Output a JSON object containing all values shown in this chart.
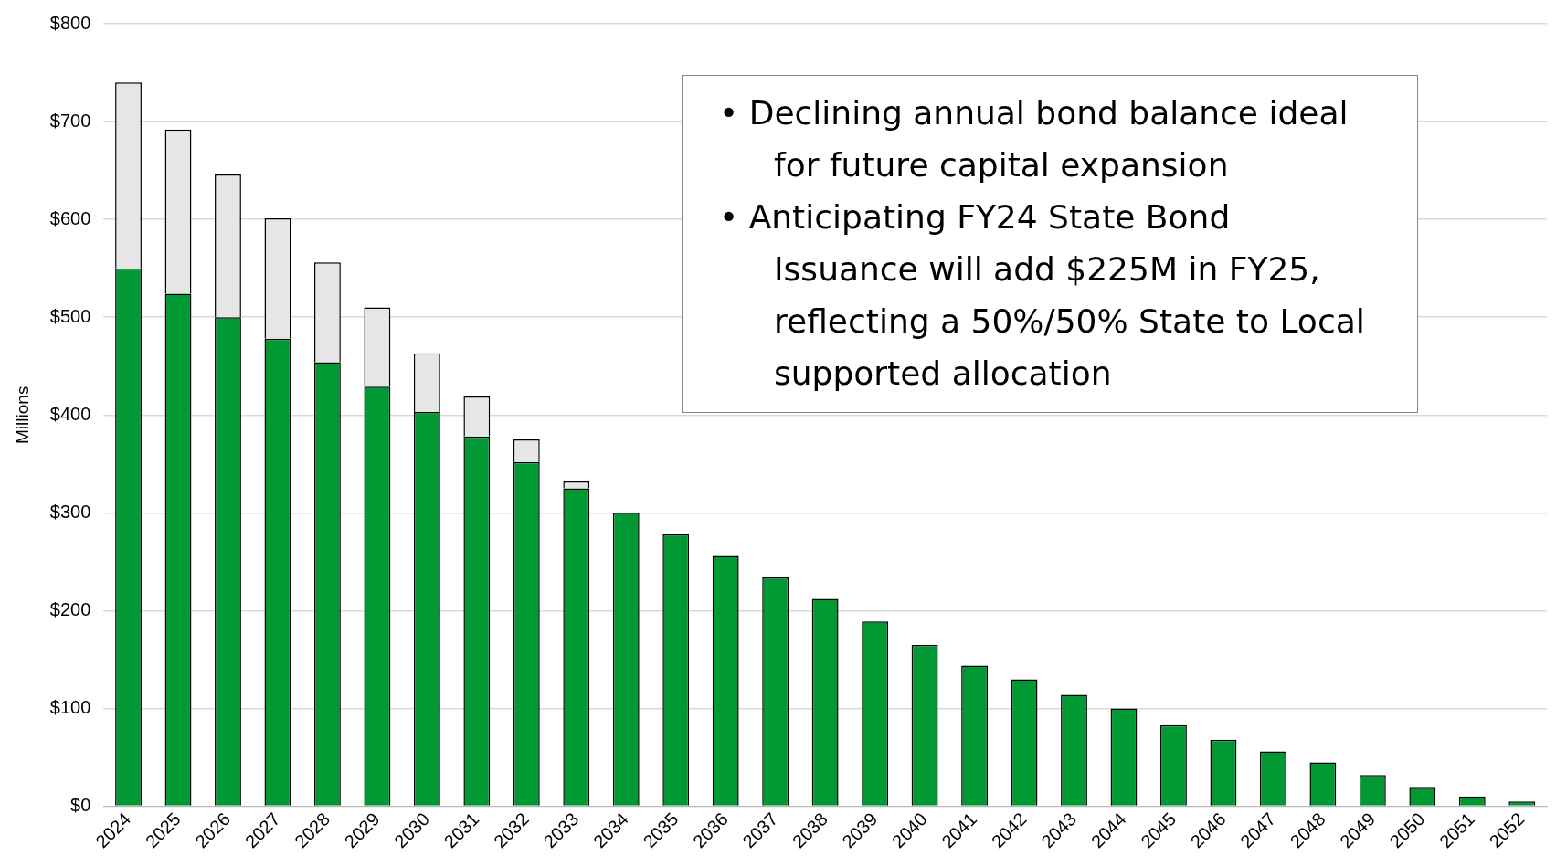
{
  "chart_data": {
    "type": "bar",
    "stacked": true,
    "ylabel": "Millions",
    "categories": [
      "2024",
      "2025",
      "2026",
      "2027",
      "2028",
      "2029",
      "2030",
      "2031",
      "2032",
      "2033",
      "2034",
      "2035",
      "2036",
      "2037",
      "2038",
      "2039",
      "2040",
      "2041",
      "2042",
      "2043",
      "2044",
      "2045",
      "2046",
      "2047",
      "2048",
      "2049",
      "2050",
      "2051",
      "2052"
    ],
    "series": [
      {
        "color": "#009933",
        "values": [
          550,
          524,
          500,
          478,
          454,
          429,
          403,
          378,
          352,
          325,
          300,
          278,
          256,
          234,
          212,
          189,
          165,
          144,
          130,
          114,
          100,
          83,
          68,
          56,
          45,
          32,
          19,
          10,
          5
        ]
      },
      {
        "color": "#e7e6e6",
        "values": [
          190,
          168,
          146,
          123,
          102,
          81,
          60,
          41,
          23,
          7,
          null,
          null,
          null,
          null,
          null,
          null,
          null,
          null,
          null,
          null,
          null,
          null,
          null,
          null,
          null,
          null,
          null,
          null,
          null
        ]
      }
    ],
    "ylim": [
      0,
      800
    ],
    "yticks": [
      {
        "value": 0,
        "label": "$0"
      },
      {
        "value": 100,
        "label": "$100"
      },
      {
        "value": 200,
        "label": "$200"
      },
      {
        "value": 300,
        "label": "$300"
      },
      {
        "value": 400,
        "label": "$400"
      },
      {
        "value": 500,
        "label": "$500"
      },
      {
        "value": 600,
        "label": "$600"
      },
      {
        "value": 700,
        "label": "$700"
      },
      {
        "value": 800,
        "label": "$800"
      }
    ],
    "grid": "y",
    "annotations": [
      "• Declining annual bond balance ideal for future capital expansion",
      "• Anticipating FY24 State Bond Issuance will add $225M in FY25, reflecting a 50%/50% State to Local supported allocation"
    ]
  }
}
